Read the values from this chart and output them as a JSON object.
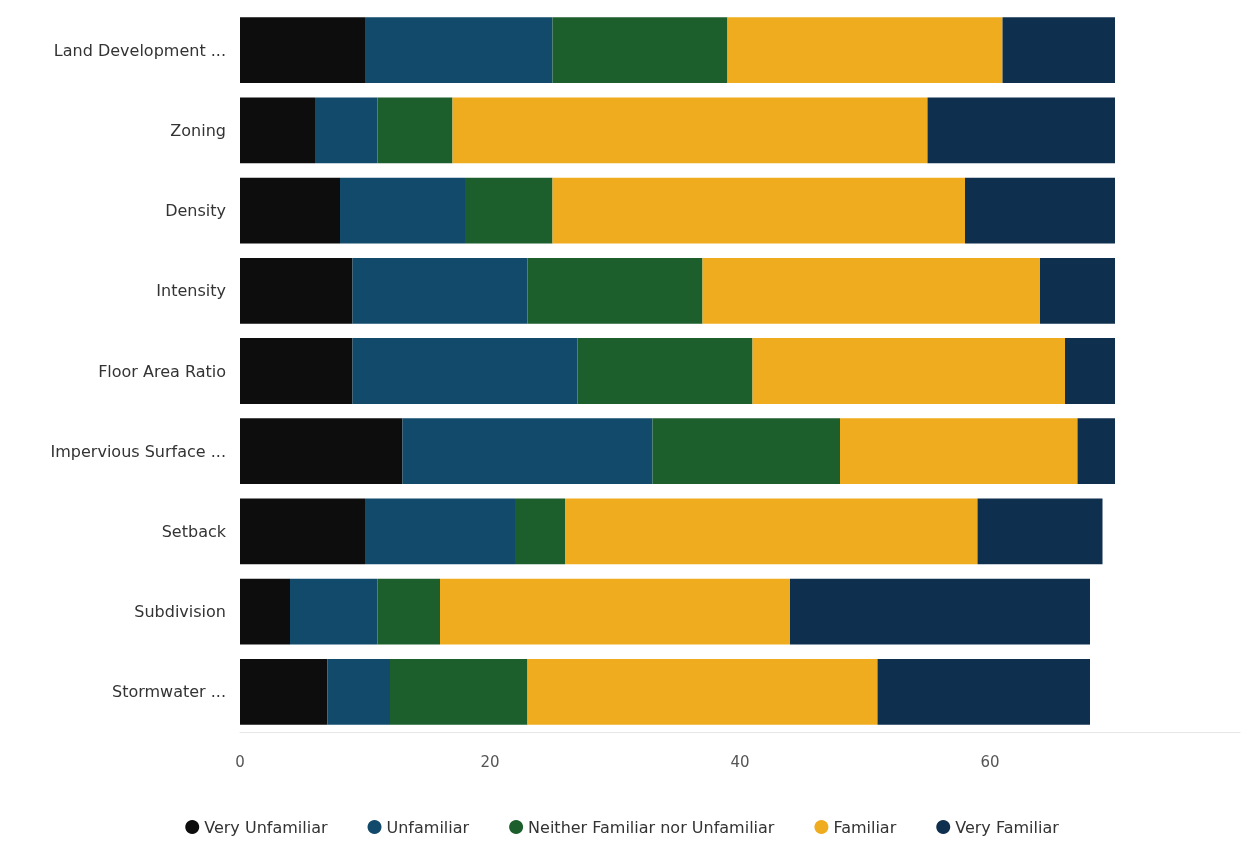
{
  "chart_data": {
    "type": "bar",
    "orientation": "horizontal",
    "stacked": true,
    "categories": [
      "Land Development ...",
      "Zoning",
      "Density",
      "Intensity",
      "Floor Area Ratio",
      "Impervious Surface ...",
      "Setback",
      "Subdivision",
      "Stormwater ..."
    ],
    "series": [
      {
        "name": "Very Unfamiliar",
        "color": "#0d0d0d",
        "values": [
          10,
          6,
          8,
          9,
          9,
          13,
          10,
          4,
          7
        ]
      },
      {
        "name": "Unfamiliar",
        "color": "#114a6b",
        "values": [
          15,
          5,
          10,
          14,
          18,
          20,
          12,
          7,
          5
        ]
      },
      {
        "name": "Neither Familiar nor Unfamiliar",
        "color": "#1c5e2c",
        "values": [
          14,
          6,
          7,
          14,
          14,
          15,
          4,
          5,
          11
        ]
      },
      {
        "name": "Familiar",
        "color": "#f0ac1f",
        "values": [
          22,
          38,
          33,
          27,
          25,
          19,
          33,
          28,
          28
        ]
      },
      {
        "name": "Very Familiar",
        "color": "#0f2f4f",
        "values": [
          9,
          15,
          12,
          6,
          4,
          3,
          10,
          24,
          17
        ]
      }
    ],
    "xlim": [
      0,
      80
    ],
    "xticks": [
      0,
      20,
      40,
      60
    ],
    "grid": false,
    "legend": "bottom"
  }
}
